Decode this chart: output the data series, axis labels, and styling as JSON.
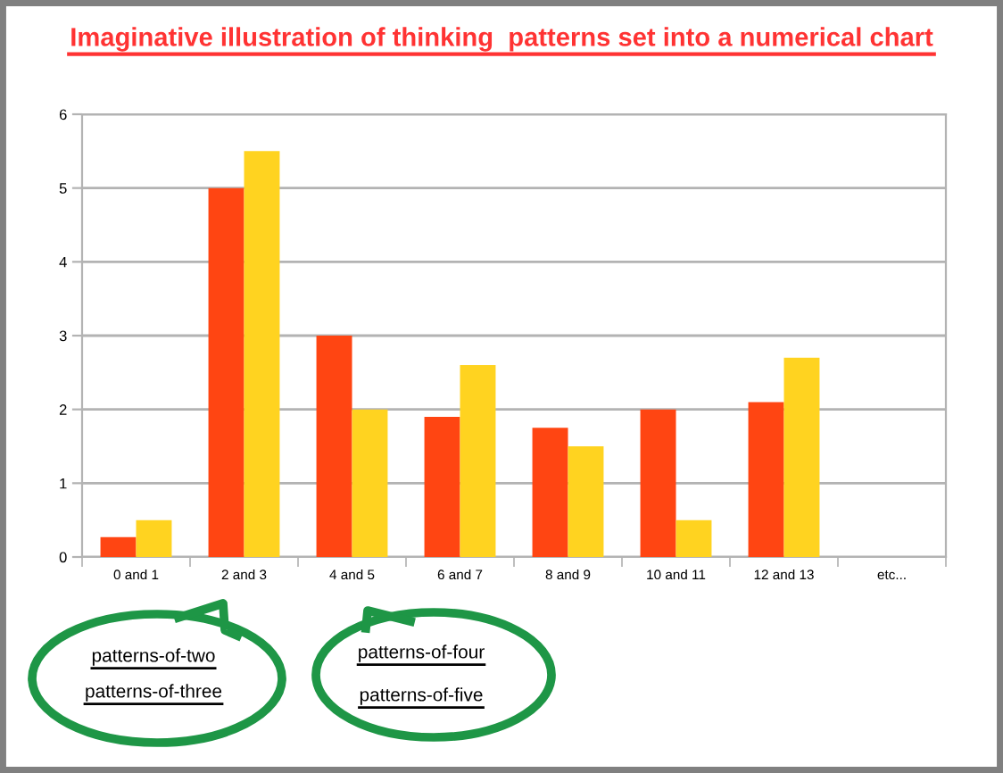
{
  "chart_data": {
    "type": "bar",
    "title": "Imaginative illustration of thinking  patterns set into a numerical chart",
    "categories": [
      "0 and 1",
      "2 and 3",
      "4 and 5",
      "6 and 7",
      "8 and 9",
      "10 and 11",
      "12 and 13",
      "etc..."
    ],
    "series": [
      {
        "color": "#ff4512",
        "values": [
          0.27,
          5,
          3,
          1.9,
          1.75,
          2,
          2.1,
          null
        ]
      },
      {
        "color": "#ffd320",
        "values": [
          0.5,
          5.5,
          2,
          2.6,
          1.5,
          0.5,
          2.7,
          null
        ]
      }
    ],
    "ylim": [
      0,
      6
    ],
    "yticks": [
      0,
      1,
      2,
      3,
      4,
      5,
      6
    ],
    "grid": "y",
    "legend": false,
    "annotations": [
      "patterns-of-two",
      "patterns-of-three",
      "patterns-of-four",
      "patterns-of-five"
    ]
  }
}
